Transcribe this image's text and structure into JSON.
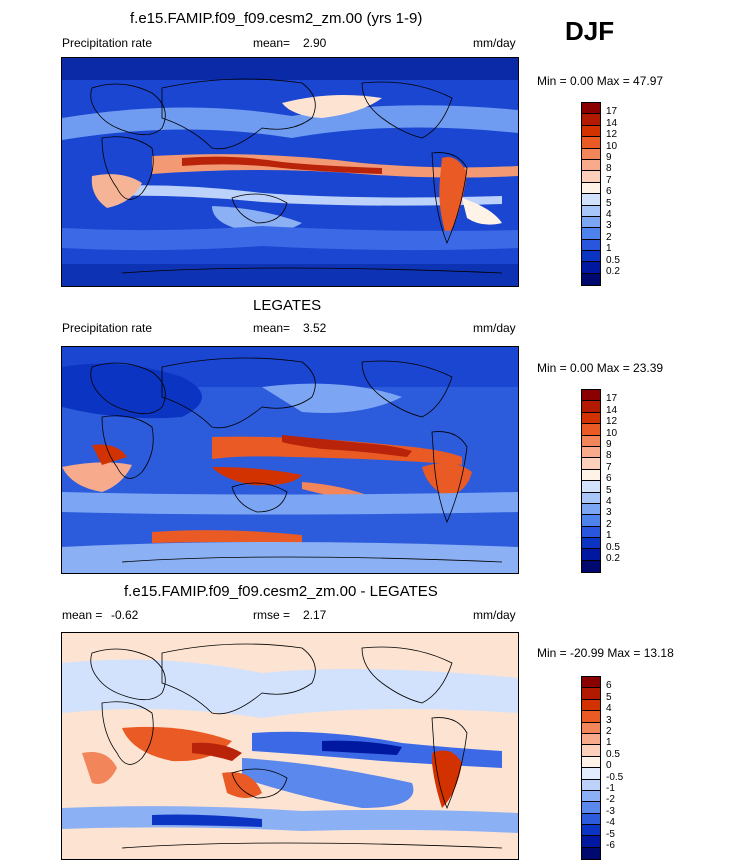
{
  "season": "DJF",
  "panels": [
    {
      "title": "f.e15.FAMIP.f09_f09.cesm2_zm.00 (yrs 1-9)",
      "left_label": "Precipitation rate",
      "stat_label": "mean=",
      "stat_value": "2.90",
      "extra_label": "",
      "extra_value": "",
      "units": "mm/day",
      "minmax": "Min =   0.00 Max =  47.97",
      "colorbar_ticks": [
        "17",
        "14",
        "12",
        "10",
        "9",
        "8",
        "7",
        "6",
        "5",
        "4",
        "3",
        "2",
        "1",
        "0.5",
        "0.2"
      ],
      "colorbar_colors": [
        "#8a0000",
        "#b21a00",
        "#d23200",
        "#ea5a24",
        "#f2855a",
        "#f8ab8c",
        "#fcd0ba",
        "#fff2e6",
        "#d2e2fc",
        "#a8c6fa",
        "#7ca6f4",
        "#4e82ec",
        "#2856dc",
        "#0c34c2",
        "#0018a0",
        "#000a6e"
      ]
    },
    {
      "title": "LEGATES",
      "left_label": "Precipitation rate",
      "stat_label": "mean=",
      "stat_value": "3.52",
      "extra_label": "",
      "extra_value": "",
      "units": "mm/day",
      "minmax": "Min =   0.00 Max =  23.39",
      "colorbar_ticks": [
        "17",
        "14",
        "12",
        "10",
        "9",
        "8",
        "7",
        "6",
        "5",
        "4",
        "3",
        "2",
        "1",
        "0.5",
        "0.2"
      ],
      "colorbar_colors": [
        "#8a0000",
        "#b21a00",
        "#d23200",
        "#ea5a24",
        "#f2855a",
        "#f8ab8c",
        "#fcd0ba",
        "#fff2e6",
        "#d2e2fc",
        "#a8c6fa",
        "#7ca6f4",
        "#4e82ec",
        "#2856dc",
        "#0c34c2",
        "#0018a0",
        "#000a6e"
      ]
    },
    {
      "title": "f.e15.FAMIP.f09_f09.cesm2_zm.00 - LEGATES",
      "left_label": "mean =",
      "stat_label": "rmse =",
      "stat_value": "2.17",
      "extra_label": "",
      "extra_value": "-0.62",
      "units": "mm/day",
      "minmax": "Min = -20.99 Max =  13.18",
      "colorbar_ticks": [
        "6",
        "5",
        "4",
        "3",
        "2",
        "1",
        "0.5",
        "0",
        "-0.5",
        "-1",
        "-2",
        "-3",
        "-4",
        "-5",
        "-6"
      ],
      "colorbar_colors": [
        "#8a0000",
        "#b21a00",
        "#d23200",
        "#ea5a24",
        "#f2855a",
        "#f8ab8c",
        "#fcd0ba",
        "#fff2e6",
        "#e2ecfc",
        "#bcd2fa",
        "#8cb0f4",
        "#5a88ec",
        "#2c5cdc",
        "#0c34c2",
        "#0018a0",
        "#000a6e"
      ]
    }
  ]
}
